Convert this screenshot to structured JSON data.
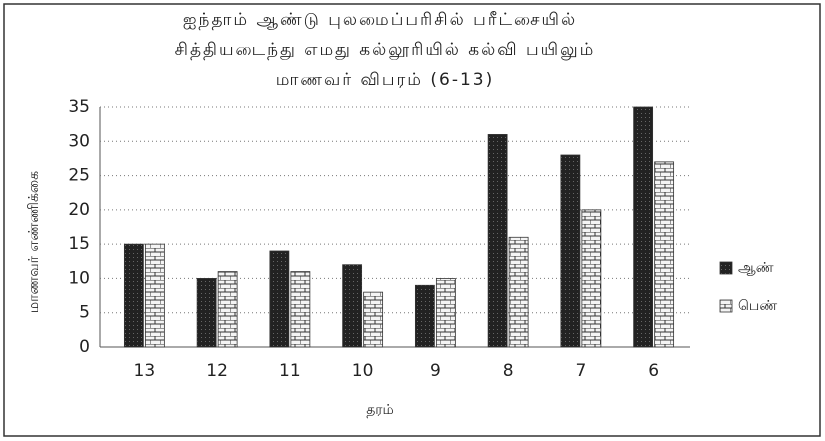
{
  "chart_data": {
    "type": "bar",
    "title": [
      "ஐந்தாம் ஆண்டு புலமைப்பரிசில் பரீட்சையில்",
      "சித்தியடைந்து எமது கல்லூரியில் கல்வி பயிலும்",
      "மாணவர் விபரம் (6-13)"
    ],
    "x_label": "தரம்",
    "y_label": "மாணவர் எண்ணிக்கை",
    "categories": [
      "13",
      "12",
      "11",
      "10",
      "9",
      "8",
      "7",
      "6"
    ],
    "series": [
      {
        "name": "ஆண்",
        "color": "#222222",
        "values": [
          15,
          10,
          14,
          12,
          9,
          31,
          28,
          35
        ]
      },
      {
        "name": "பெண்",
        "color": "#f4f4f4",
        "values": [
          15,
          11,
          11,
          8,
          10,
          16,
          20,
          27
        ]
      }
    ],
    "ylim": [
      0,
      35
    ],
    "yticks": [
      0,
      5,
      10,
      15,
      20,
      25,
      30,
      35
    ],
    "grid": true,
    "legend": "right"
  }
}
